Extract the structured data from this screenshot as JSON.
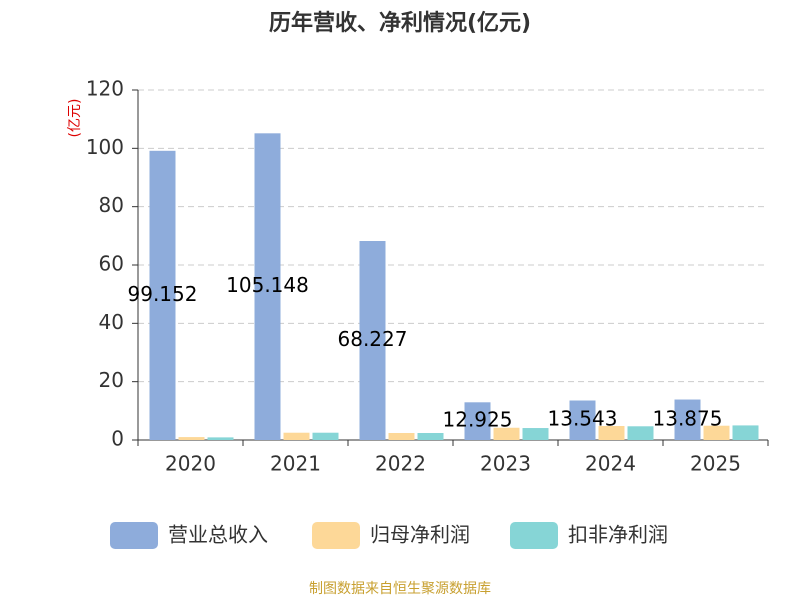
{
  "chart_data": {
    "type": "bar",
    "title": "历年营收、净利情况(亿元)",
    "y_label": "(亿元)",
    "source": "制图数据来自恒生聚源数据库",
    "categories": [
      "2020",
      "2021",
      "2022",
      "2023",
      "2024",
      "2025"
    ],
    "series": [
      {
        "name": "营业总收入",
        "color": "#8eacdb",
        "values": [
          99.152,
          105.148,
          68.227,
          12.925,
          13.543,
          13.875
        ],
        "show_labels": true
      },
      {
        "name": "归母净利润",
        "color": "#fdd898",
        "values": [
          1.0,
          2.5,
          2.4,
          4.2,
          4.8,
          4.9
        ]
      },
      {
        "name": "扣非净利润",
        "color": "#86d5d6",
        "values": [
          0.9,
          2.5,
          2.4,
          4.1,
          4.7,
          5.0
        ]
      }
    ],
    "ylim": [
      0,
      120
    ],
    "yticks": [
      0,
      20,
      40,
      60,
      80,
      100,
      120
    ],
    "grid": true
  }
}
